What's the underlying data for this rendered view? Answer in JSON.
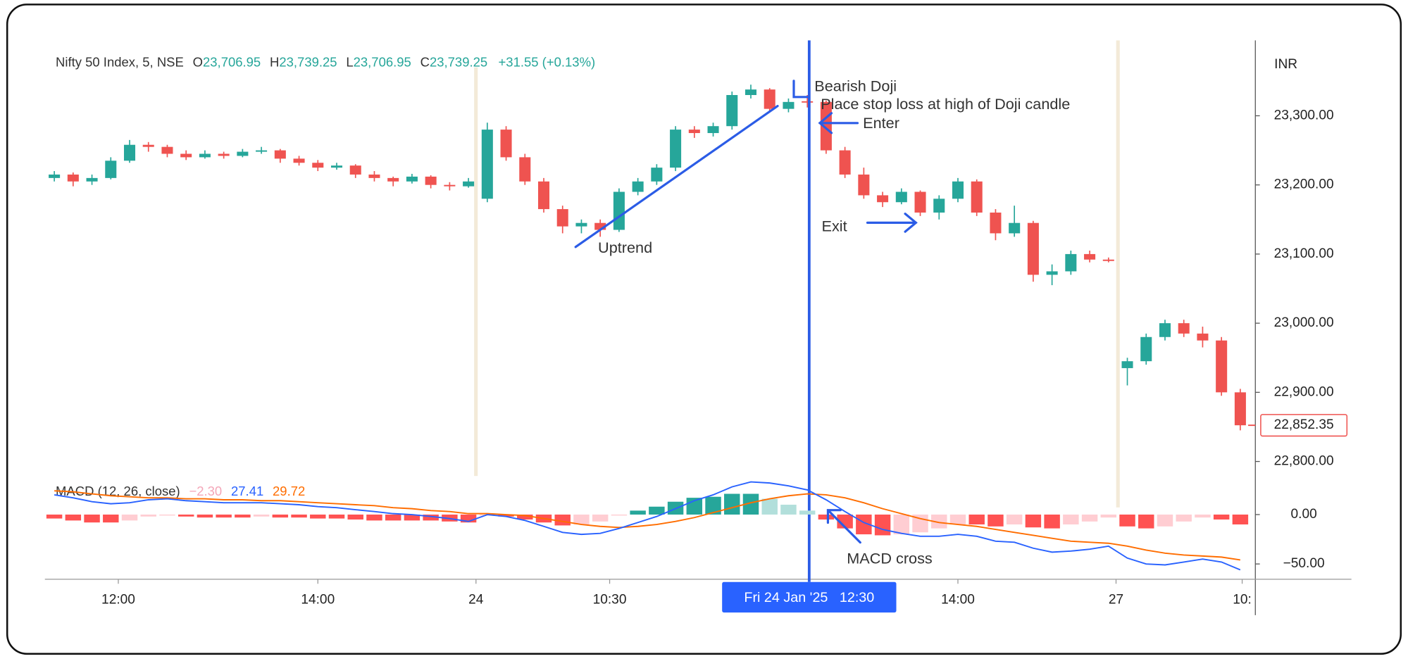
{
  "header": {
    "symbol": "Nifty 50 Index, 5, NSE",
    "ohlc": [
      {
        "key": "O",
        "value": "23,706.95"
      },
      {
        "key": "H",
        "value": "23,739.25"
      },
      {
        "key": "L",
        "value": "23,706.95"
      },
      {
        "key": "C",
        "value": "23,739.25"
      }
    ],
    "change": "+31.55 (+0.13%)"
  },
  "chart_data": [
    {
      "type": "candlestick",
      "currency": "INR",
      "up_color": "#26a69a",
      "down_color": "#ef5350",
      "candles": [
        [
          23210,
          23220,
          23205,
          23215
        ],
        [
          23215,
          23218,
          23198,
          23205
        ],
        [
          23205,
          23215,
          23200,
          23210
        ],
        [
          23210,
          23240,
          23208,
          23235
        ],
        [
          23235,
          23265,
          23232,
          23258
        ],
        [
          23258,
          23262,
          23248,
          23255
        ],
        [
          23255,
          23258,
          23240,
          23245
        ],
        [
          23245,
          23250,
          23236,
          23240
        ],
        [
          23240,
          23250,
          23238,
          23245
        ],
        [
          23245,
          23248,
          23238,
          23242
        ],
        [
          23242,
          23252,
          23240,
          23248
        ],
        [
          23248,
          23255,
          23245,
          23250
        ],
        [
          23250,
          23252,
          23232,
          23238
        ],
        [
          23238,
          23242,
          23228,
          23232
        ],
        [
          23232,
          23236,
          23220,
          23225
        ],
        [
          23225,
          23232,
          23222,
          23228
        ],
        [
          23228,
          23230,
          23210,
          23215
        ],
        [
          23215,
          23220,
          23205,
          23210
        ],
        [
          23210,
          23212,
          23198,
          23205
        ],
        [
          23205,
          23216,
          23202,
          23212
        ],
        [
          23212,
          23214,
          23195,
          23200
        ],
        [
          23200,
          23204,
          23192,
          23198
        ],
        [
          23198,
          23210,
          23196,
          23205
        ],
        [
          23180,
          23290,
          23175,
          23280
        ],
        [
          23280,
          23285,
          23235,
          23240
        ],
        [
          23240,
          23245,
          23200,
          23205
        ],
        [
          23205,
          23210,
          23160,
          23165
        ],
        [
          23165,
          23170,
          23130,
          23140
        ],
        [
          23140,
          23150,
          23130,
          23145
        ],
        [
          23145,
          23150,
          23125,
          23135
        ],
        [
          23135,
          23195,
          23132,
          23190
        ],
        [
          23190,
          23210,
          23185,
          23205
        ],
        [
          23205,
          23230,
          23200,
          23225
        ],
        [
          23225,
          23285,
          23220,
          23280
        ],
        [
          23280,
          23285,
          23268,
          23275
        ],
        [
          23275,
          23290,
          23270,
          23285
        ],
        [
          23285,
          23335,
          23280,
          23330
        ],
        [
          23330,
          23345,
          23325,
          23338
        ],
        [
          23338,
          23340,
          23305,
          23310
        ],
        [
          23310,
          23325,
          23305,
          23320
        ],
        [
          23321,
          23330,
          23312,
          23320
        ],
        [
          23320,
          23322,
          23245,
          23250
        ],
        [
          23250,
          23255,
          23210,
          23215
        ],
        [
          23215,
          23225,
          23180,
          23185
        ],
        [
          23185,
          23190,
          23168,
          23175
        ],
        [
          23175,
          23195,
          23172,
          23190
        ],
        [
          23190,
          23192,
          23155,
          23160
        ],
        [
          23160,
          23185,
          23150,
          23180
        ],
        [
          23180,
          23210,
          23175,
          23205
        ],
        [
          23205,
          23208,
          23155,
          23160
        ],
        [
          23160,
          23165,
          23120,
          23130
        ],
        [
          23130,
          23170,
          23125,
          23145
        ],
        [
          23145,
          23148,
          23060,
          23070
        ],
        [
          23070,
          23085,
          23055,
          23075
        ],
        [
          23075,
          23105,
          23070,
          23100
        ],
        [
          23100,
          23105,
          23088,
          23092
        ],
        [
          23092,
          23095,
          23088,
          23090
        ],
        [
          22935,
          22950,
          22910,
          22945
        ],
        [
          22945,
          22985,
          22940,
          22980
        ],
        [
          22980,
          23005,
          22975,
          23000
        ],
        [
          23000,
          23005,
          22980,
          22985
        ],
        [
          22985,
          22995,
          22965,
          22975
        ],
        [
          22975,
          22980,
          22895,
          22900
        ],
        [
          22900,
          22905,
          22845,
          22852.35
        ]
      ],
      "xlim": [
        -0.5,
        63.8
      ],
      "ylim": [
        22779,
        23409
      ],
      "yticks": [
        {
          "value": 22800,
          "label": "22,800.00"
        },
        {
          "value": 22900,
          "label": "22,900.00"
        },
        {
          "value": 23000,
          "label": "23,000.00"
        },
        {
          "value": 23100,
          "label": "23,100.00"
        },
        {
          "value": 23200,
          "label": "23,200.00"
        },
        {
          "value": 23300,
          "label": "23,300.00"
        }
      ],
      "last_price": {
        "value": 22852.35,
        "label": "22,852.35"
      },
      "xticks": [
        {
          "value": 3.4,
          "label": "12:00"
        },
        {
          "value": 14,
          "label": "14:00"
        },
        {
          "value": 22.4,
          "label": "24"
        },
        {
          "value": 29.5,
          "label": "10:30"
        },
        {
          "value": 48,
          "label": "14:00"
        },
        {
          "value": 56.4,
          "label": "27"
        },
        {
          "value": 63.1,
          "label": "10:"
        }
      ],
      "crosshair": {
        "value": 40.1,
        "label": "Fri 24 Jan '25   12:30"
      },
      "annotations": [
        "Bearish Doji",
        "Place stop loss at high of Doji candle",
        "Enter",
        "Exit",
        "Uptrend",
        "MACD cross"
      ]
    },
    {
      "type": "macd",
      "title": "MACD (12, 26, close)",
      "xlim": [
        -0.5,
        63.8
      ],
      "ylim": [
        -65.5,
        34.5
      ],
      "yticks": [
        {
          "value": 0,
          "label": "0.00"
        },
        {
          "value": -50,
          "label": "−50.00"
        }
      ],
      "histogram": {
        "colors": [
          "#26a69a",
          "#b2dfdb",
          "#ffcdd2",
          "#ff5252"
        ],
        "legend": {
          "value": -2.3,
          "label": "−2.30"
        },
        "values": [
          -4,
          -6,
          -8,
          -8,
          -6,
          -2,
          -1,
          -2,
          -3,
          -3,
          -3,
          -2,
          -3,
          -3,
          -4,
          -4,
          -5,
          -6,
          -6,
          -6,
          -6,
          -7,
          -8,
          -1,
          -2,
          -5,
          -8,
          -11,
          -10,
          -7,
          -1,
          4,
          8,
          13,
          17,
          18,
          21,
          21,
          16,
          10,
          4,
          -5,
          -14,
          -20,
          -21,
          -20,
          -18,
          -14,
          -10,
          -10,
          -12,
          -10,
          -13,
          -14,
          -10,
          -7,
          -3,
          -12,
          -14,
          -12,
          -7,
          -3,
          -5,
          -10
        ]
      },
      "macd": {
        "color": "#2962ff",
        "legend": 27.41,
        "values": [
          20,
          17,
          13,
          11,
          12,
          15,
          16,
          14,
          13,
          12,
          12,
          12,
          11,
          10,
          8,
          7,
          5,
          3,
          1,
          0,
          -2,
          -4,
          -7,
          0,
          -2,
          -6,
          -12,
          -18,
          -20,
          -19,
          -14,
          -8,
          -2,
          6,
          14,
          20,
          28,
          33,
          32,
          29,
          25,
          15,
          3,
          -8,
          -15,
          -19,
          -22,
          -22,
          -20,
          -22,
          -27,
          -28,
          -34,
          -38,
          -37,
          -35,
          -32,
          -44,
          -50,
          -51,
          -48,
          -45,
          -48,
          -56
        ]
      },
      "signal": {
        "color": "#ff6d00",
        "legend": 29.72,
        "values": [
          24,
          23,
          21,
          19,
          18,
          17,
          17,
          16,
          16,
          15,
          15,
          14,
          14,
          13,
          12,
          11,
          10,
          9,
          7,
          6,
          4,
          3,
          1,
          1,
          0,
          -1,
          -4,
          -7,
          -10,
          -12,
          -13,
          -12,
          -10,
          -7,
          -3,
          2,
          7,
          12,
          16,
          19,
          21,
          20,
          17,
          12,
          6,
          1,
          -4,
          -8,
          -10,
          -12,
          -15,
          -18,
          -21,
          -24,
          -27,
          -28,
          -29,
          -32,
          -36,
          -39,
          -41,
          -42,
          -43,
          -46
        ]
      }
    }
  ]
}
